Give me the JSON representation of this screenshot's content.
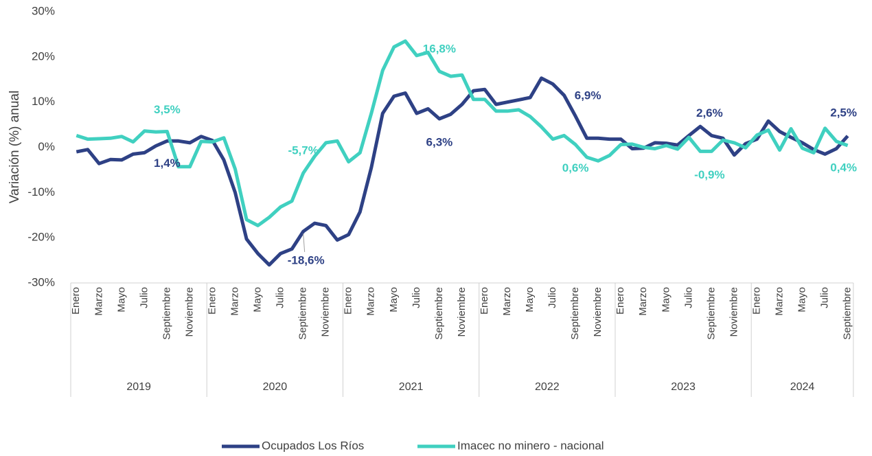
{
  "chart_data": {
    "type": "line",
    "y_label": "Variación (%) anual",
    "categories": [
      "Enero",
      null,
      "Marzo",
      null,
      "Mayo",
      null,
      "Julio",
      null,
      "Septiembre",
      null,
      "Noviembre",
      null,
      "Enero",
      null,
      "Marzo",
      null,
      "Mayo",
      null,
      "Julio",
      null,
      "Septiembre",
      null,
      "Noviembre",
      null,
      "Enero",
      null,
      "Marzo",
      null,
      "Mayo",
      null,
      "Julio",
      null,
      "Septiembre",
      null,
      "Noviembre",
      null,
      "Enero",
      null,
      "Marzo",
      null,
      "Mayo",
      null,
      "Julio",
      null,
      "Septiembre",
      null,
      "Noviembre",
      null,
      "Enero",
      null,
      "Marzo",
      null,
      "Mayo",
      null,
      "Julio",
      null,
      "Septiembre",
      null,
      "Noviembre",
      null,
      "Enero",
      null,
      "Marzo",
      null,
      "Mayo",
      null,
      "Julio",
      null,
      "Septiembre"
    ],
    "groups": [
      {
        "label": "2019",
        "categories": 12
      },
      {
        "label": "2020",
        "categories": 12
      },
      {
        "label": "2021",
        "categories": 12
      },
      {
        "label": "2022",
        "categories": 12
      },
      {
        "label": "2023",
        "categories": 12
      },
      {
        "label": "2024",
        "categories": 9
      }
    ],
    "ylim": [
      -30,
      30
    ],
    "yticks": [
      {
        "value": 30,
        "label": "30%"
      },
      {
        "value": 20,
        "label": "20%"
      },
      {
        "value": 10,
        "label": "10%"
      },
      {
        "value": 0,
        "label": "0%"
      },
      {
        "value": -10,
        "label": "-10%"
      },
      {
        "value": -20,
        "label": "-20%"
      },
      {
        "value": -30,
        "label": "-30%"
      }
    ],
    "legend": "bottom",
    "series": [
      {
        "name": "Ocupados Los Ríos",
        "color": "#2e4185",
        "values": [
          -1.0,
          -0.5,
          -3.6,
          -2.7,
          -2.8,
          -1.5,
          -1.2,
          0.3,
          1.4,
          1.4,
          1.0,
          2.4,
          1.5,
          -2.8,
          -10.0,
          -20.3,
          -23.5,
          -26.0,
          -23.5,
          -22.5,
          -18.6,
          -16.8,
          -17.3,
          -20.5,
          -19.3,
          -14.3,
          -4.5,
          7.5,
          11.3,
          12.0,
          7.5,
          8.5,
          6.3,
          7.3,
          9.5,
          12.5,
          12.8,
          9.5,
          10.0,
          10.5,
          11.0,
          15.3,
          14.0,
          11.5,
          6.9,
          2.0,
          2.0,
          1.8,
          1.8,
          -0.3,
          -0.2,
          1.0,
          0.9,
          0.5,
          2.6,
          4.6,
          2.6,
          2.0,
          -1.7,
          0.8,
          1.8,
          5.8,
          3.5,
          2.2,
          1.0,
          -0.5,
          -1.5,
          -0.3,
          2.5
        ],
        "value_labels": [
          null,
          null,
          null,
          null,
          null,
          null,
          null,
          null,
          "1,4%",
          null,
          null,
          null,
          null,
          null,
          null,
          null,
          null,
          null,
          null,
          null,
          "-18,6%",
          null,
          null,
          null,
          null,
          null,
          null,
          null,
          null,
          null,
          null,
          null,
          "6,3%",
          null,
          null,
          null,
          null,
          null,
          null,
          null,
          null,
          null,
          null,
          null,
          "6,9%",
          null,
          null,
          null,
          null,
          null,
          null,
          null,
          null,
          null,
          null,
          null,
          "2,6%",
          null,
          null,
          null,
          null,
          null,
          null,
          null,
          null,
          null,
          null,
          null,
          "2,5%"
        ]
      },
      {
        "name": "Imacec no minero - nacional",
        "color": "#40d0c0",
        "values": [
          2.6,
          1.8,
          1.9,
          2.0,
          2.4,
          1.2,
          3.6,
          3.4,
          3.5,
          -4.3,
          -4.3,
          1.3,
          1.2,
          2.1,
          -4.8,
          -16.0,
          -17.3,
          -15.5,
          -13.2,
          -11.9,
          -5.7,
          -2.0,
          1.0,
          1.4,
          -3.2,
          -1.2,
          7.5,
          17.0,
          22.2,
          23.5,
          20.3,
          21.0,
          16.8,
          15.7,
          16.0,
          10.6,
          10.6,
          8.0,
          8.0,
          8.3,
          6.8,
          4.5,
          1.8,
          2.6,
          0.6,
          -2.2,
          -3.0,
          -1.8,
          0.6,
          0.7,
          0.0,
          -0.3,
          0.4,
          -0.4,
          2.2,
          -0.9,
          -0.9,
          1.6,
          1.0,
          -0.1,
          2.7,
          3.8,
          -0.6,
          4.1,
          -0.2,
          -1.2,
          4.2,
          1.3,
          0.4
        ],
        "value_labels": [
          null,
          null,
          null,
          null,
          null,
          null,
          null,
          null,
          "3,5%",
          null,
          null,
          null,
          null,
          null,
          null,
          null,
          null,
          null,
          null,
          null,
          "-5,7%",
          null,
          null,
          null,
          null,
          null,
          null,
          null,
          null,
          null,
          null,
          null,
          "16,8%",
          null,
          null,
          null,
          null,
          null,
          null,
          null,
          null,
          null,
          null,
          null,
          "0,6%",
          null,
          null,
          null,
          null,
          null,
          null,
          null,
          null,
          null,
          null,
          null,
          "-0,9%",
          null,
          null,
          null,
          null,
          null,
          null,
          null,
          null,
          null,
          null,
          null,
          "0,4%"
        ]
      }
    ]
  }
}
